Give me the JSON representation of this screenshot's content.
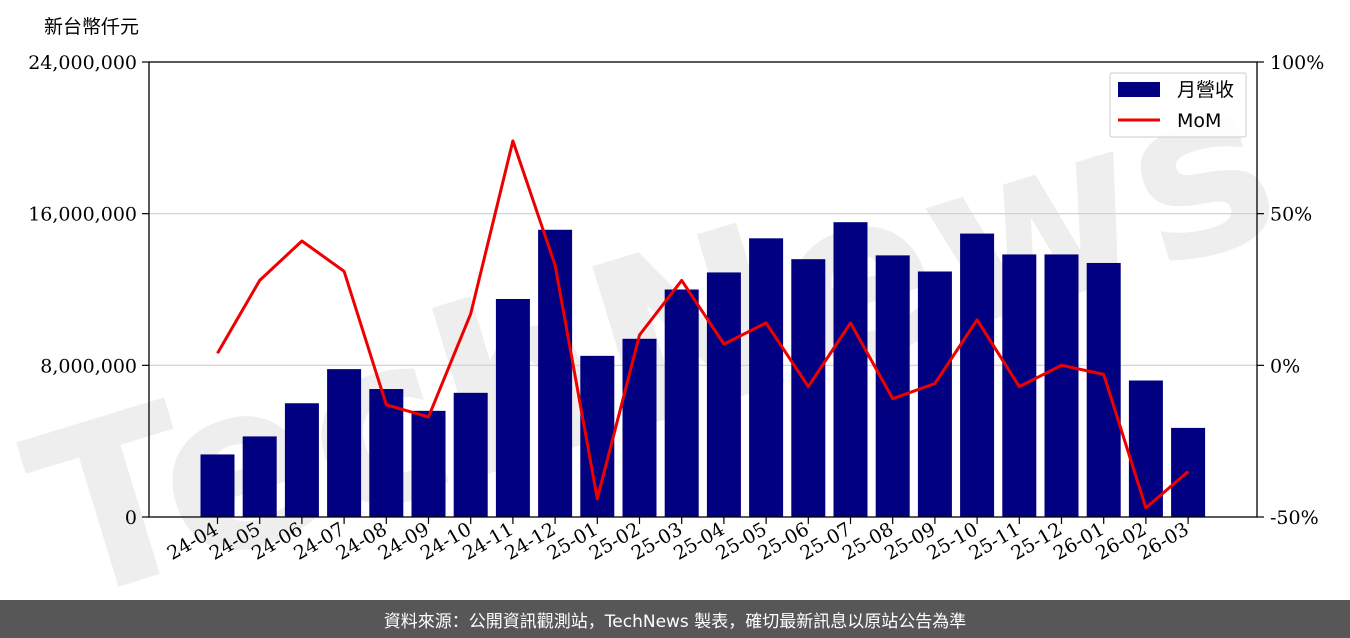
{
  "chart_data": {
    "type": "bar+line",
    "y_title": "新台幣仟元",
    "categories": [
      "24-04",
      "24-05",
      "24-06",
      "24-07",
      "24-08",
      "24-09",
      "24-10",
      "24-11",
      "24-12",
      "25-01",
      "25-02",
      "25-03",
      "25-04",
      "25-05",
      "25-06",
      "25-07",
      "25-08",
      "25-09",
      "25-10",
      "25-11",
      "25-12",
      "26-01",
      "26-02",
      "26-03"
    ],
    "series": [
      {
        "name": "月營收",
        "axis": "left",
        "color": "#000080",
        "values": [
          3300000,
          4250000,
          6000000,
          7800000,
          6750000,
          5600000,
          6550000,
          11500000,
          15150000,
          8500000,
          9400000,
          12000000,
          12900000,
          14700000,
          13600000,
          15550000,
          13800000,
          12950000,
          14950000,
          13850000,
          13850000,
          13400000,
          7200000,
          4700000
        ]
      },
      {
        "name": "MoM",
        "axis": "right",
        "color": "#ee0000",
        "values": [
          4,
          28,
          41,
          31,
          -13,
          -17,
          17,
          74,
          33,
          -44,
          10,
          28,
          7,
          14,
          -7,
          14,
          -11,
          -6,
          15,
          -7,
          0,
          -3,
          -47,
          -35
        ]
      }
    ],
    "left_axis": {
      "min": 0,
      "max": 24000000,
      "ticks": [
        0,
        8000000,
        16000000,
        24000000
      ],
      "tick_labels": [
        "0",
        "8,000,000",
        "16,000,000",
        "24,000,000"
      ]
    },
    "right_axis": {
      "min": -50,
      "max": 100,
      "ticks": [
        -50,
        0,
        50,
        100
      ],
      "tick_labels": [
        "-50%",
        "0%",
        "50%",
        "100%"
      ]
    },
    "grid": "horizontal",
    "legend": "top-right"
  },
  "watermark": "TechNews",
  "footer": "資料來源：公開資訊觀測站，TechNews 製表，確切最新訊息以原站公告為準"
}
